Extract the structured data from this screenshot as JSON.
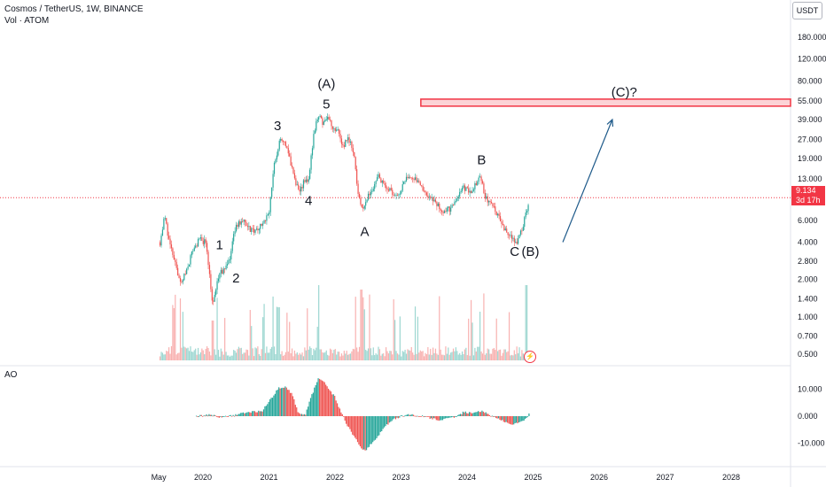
{
  "header": {
    "title": "Cosmos / TetherUS, 1W, BINANCE",
    "volume_label": "Vol · ATOM",
    "currency": "USDT"
  },
  "price_tag": {
    "price": "9.134",
    "countdown": "3d 17h"
  },
  "ao_label": "AO",
  "colors": {
    "up": "#26a69a",
    "down": "#ef5350",
    "zone": "#f23645",
    "arrow": "#1e5a8a"
  },
  "chart_data": [
    {
      "type": "candlestick",
      "title": "Cosmos / TetherUS, 1W, BINANCE",
      "scale": "log",
      "y_ticks": [
        "180.000",
        "120.000",
        "80.000",
        "55.000",
        "39.000",
        "27.000",
        "19.000",
        "13.000",
        "9.134",
        "6.000",
        "4.000",
        "2.800",
        "2.000",
        "1.400",
        "1.000",
        "0.700",
        "0.500"
      ],
      "x_ticks": [
        "May",
        "2020",
        "2021",
        "2022",
        "2023",
        "2024",
        "2025",
        "2026",
        "2027",
        "2028"
      ],
      "price_path": [
        [
          2019.35,
          4.0
        ],
        [
          2019.42,
          6.5
        ],
        [
          2019.5,
          3.8
        ],
        [
          2019.6,
          2.5
        ],
        [
          2019.67,
          1.8
        ],
        [
          2019.75,
          2.4
        ],
        [
          2019.85,
          3.5
        ],
        [
          2019.95,
          4.2
        ],
        [
          2020.05,
          4.0
        ],
        [
          2020.15,
          1.2
        ],
        [
          2020.22,
          2.0
        ],
        [
          2020.3,
          2.4
        ],
        [
          2020.4,
          2.9
        ],
        [
          2020.5,
          5.5
        ],
        [
          2020.6,
          6.0
        ],
        [
          2020.7,
          5.2
        ],
        [
          2020.8,
          4.8
        ],
        [
          2020.9,
          5.6
        ],
        [
          2021.0,
          7.0
        ],
        [
          2021.08,
          17.0
        ],
        [
          2021.15,
          25.0
        ],
        [
          2021.22,
          27.0
        ],
        [
          2021.3,
          20.0
        ],
        [
          2021.37,
          14.0
        ],
        [
          2021.45,
          10.0
        ],
        [
          2021.52,
          12.0
        ],
        [
          2021.6,
          13.0
        ],
        [
          2021.68,
          30.0
        ],
        [
          2021.75,
          43.0
        ],
        [
          2021.82,
          36.0
        ],
        [
          2021.88,
          40.0
        ],
        [
          2021.95,
          35.0
        ],
        [
          2022.05,
          32.0
        ],
        [
          2022.12,
          24.0
        ],
        [
          2022.2,
          28.0
        ],
        [
          2022.28,
          22.0
        ],
        [
          2022.35,
          10.0
        ],
        [
          2022.42,
          7.0
        ],
        [
          2022.48,
          9.0
        ],
        [
          2022.58,
          11.0
        ],
        [
          2022.65,
          14.0
        ],
        [
          2022.72,
          12.0
        ],
        [
          2022.8,
          11.0
        ],
        [
          2022.88,
          10.0
        ],
        [
          2022.95,
          9.5
        ],
        [
          2023.05,
          12.0
        ],
        [
          2023.12,
          14.0
        ],
        [
          2023.2,
          13.0
        ],
        [
          2023.3,
          11.5
        ],
        [
          2023.42,
          9.5
        ],
        [
          2023.55,
          8.0
        ],
        [
          2023.65,
          7.0
        ],
        [
          2023.75,
          7.5
        ],
        [
          2023.85,
          9.0
        ],
        [
          2023.95,
          11.0
        ],
        [
          2024.05,
          10.0
        ],
        [
          2024.15,
          12.5
        ],
        [
          2024.22,
          13.0
        ],
        [
          2024.28,
          9.0
        ],
        [
          2024.38,
          8.0
        ],
        [
          2024.48,
          6.5
        ],
        [
          2024.58,
          5.0
        ],
        [
          2024.68,
          4.5
        ],
        [
          2024.75,
          4.0
        ],
        [
          2024.82,
          4.8
        ],
        [
          2024.88,
          6.5
        ],
        [
          2024.94,
          9.1
        ]
      ],
      "series": [
        {
          "name": "Vol · ATOM"
        }
      ],
      "annotations": [
        {
          "text": "(A)",
          "x": 2021.87,
          "y": 70.0
        },
        {
          "text": "5",
          "x": 2021.87,
          "y": 48.0
        },
        {
          "text": "3",
          "x": 2021.13,
          "y": 32.0
        },
        {
          "text": "4",
          "x": 2021.6,
          "y": 8.0
        },
        {
          "text": "1",
          "x": 2020.25,
          "y": 3.5
        },
        {
          "text": "2",
          "x": 2020.5,
          "y": 1.9
        },
        {
          "text": "A",
          "x": 2022.45,
          "y": 4.5
        },
        {
          "text": "B",
          "x": 2024.22,
          "y": 17.0
        },
        {
          "text": "C",
          "x": 2024.72,
          "y": 3.1
        },
        {
          "text": "(B)",
          "x": 2024.96,
          "y": 3.1
        },
        {
          "text": "(C)?",
          "x": 2026.38,
          "y": 60.0
        }
      ],
      "zone": {
        "x_from": 2023.3,
        "x_to": 2028.9,
        "y_low": 50.0,
        "y_high": 57.0
      },
      "arrow": {
        "from": [
          2025.45,
          4.0
        ],
        "to": [
          2026.2,
          39.0
        ]
      }
    },
    {
      "type": "bar",
      "title": "AO",
      "y_ticks": [
        "10.000",
        "0.000",
        "-10.000"
      ],
      "x_range": [
        2019.9,
        2024.94
      ],
      "ylim": [
        -13,
        12
      ],
      "profile": [
        [
          2019.9,
          0.0
        ],
        [
          2020.1,
          0.5
        ],
        [
          2020.3,
          -0.5
        ],
        [
          2020.5,
          0.6
        ],
        [
          2020.7,
          1.5
        ],
        [
          2020.9,
          2.0
        ],
        [
          2021.05,
          7.0
        ],
        [
          2021.15,
          10.5
        ],
        [
          2021.25,
          11.0
        ],
        [
          2021.35,
          8.0
        ],
        [
          2021.45,
          1.0
        ],
        [
          2021.55,
          0.5
        ],
        [
          2021.62,
          6.0
        ],
        [
          2021.75,
          14.0
        ],
        [
          2021.85,
          12.0
        ],
        [
          2022.0,
          7.0
        ],
        [
          2022.1,
          1.0
        ],
        [
          2022.2,
          -4.0
        ],
        [
          2022.35,
          -10.0
        ],
        [
          2022.45,
          -13.0
        ],
        [
          2022.6,
          -9.0
        ],
        [
          2022.75,
          -4.0
        ],
        [
          2022.9,
          -1.0
        ],
        [
          2023.1,
          0.8
        ],
        [
          2023.25,
          0.3
        ],
        [
          2023.4,
          -0.5
        ],
        [
          2023.6,
          -1.5
        ],
        [
          2023.8,
          -0.5
        ],
        [
          2023.95,
          1.5
        ],
        [
          2024.1,
          1.0
        ],
        [
          2024.2,
          2.0
        ],
        [
          2024.35,
          0.5
        ],
        [
          2024.55,
          -2.0
        ],
        [
          2024.7,
          -3.0
        ],
        [
          2024.85,
          -2.0
        ],
        [
          2024.94,
          0.8
        ]
      ]
    }
  ]
}
